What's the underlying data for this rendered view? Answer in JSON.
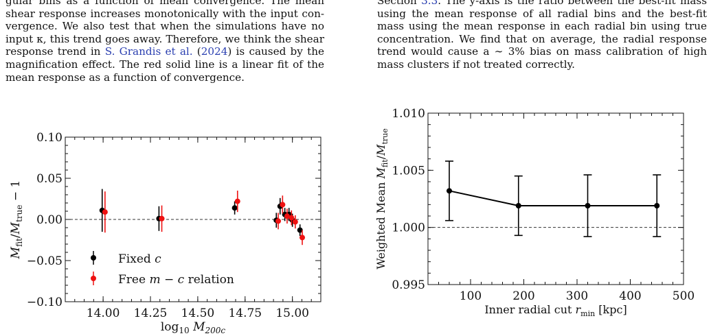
{
  "left_text": {
    "lines": [
      "gular bins as a function of mean convergence.  The mean",
      "shear response increases monotonically with the input con-",
      "vergence. We also test that when the simulations have no",
      "input κ, this trend goes away. Therefore, we think the shear",
      "response trend in ",
      "magnification effect. The red solid line is a linear fit of the",
      "mean response as a function of convergence."
    ],
    "cite_name": "S. Grandis et al.",
    "cite_year": "2024",
    "line5_tail": ") is caused by the",
    "line0_head": "gular bins as a function of mean convergence.  The mean"
  },
  "right_text": {
    "lines": [
      "Section 3.3.  The y-axis is the ratio between the best-fit mass",
      "using the mean response of all radial bins and the best-fit",
      "mass using the mean response in each radial bin using true",
      "concentration. We find that on average, the radial response",
      "trend would cause a ∼ 3% bias on mass calibration of high",
      "mass clusters if not treated correctly."
    ],
    "section_ref": "3.3"
  },
  "chart_data": [
    {
      "type": "scatter",
      "xlabel": "log10 M200c",
      "ylabel": "Mfit/Mtrue − 1",
      "xlim": [
        13.8,
        15.15
      ],
      "ylim": [
        -0.1,
        0.1
      ],
      "xticks": [
        14.0,
        14.25,
        14.5,
        14.75,
        15.0
      ],
      "xtick_labels": [
        "14.00",
        "14.25",
        "14.50",
        "14.75",
        "15.00"
      ],
      "yticks": [
        -0.1,
        -0.05,
        0.0,
        0.05,
        0.1
      ],
      "ytick_labels": [
        "−0.10",
        "−0.05",
        "0.00",
        "0.05",
        "0.10"
      ],
      "reference_line": 0.0,
      "legend_placement": "lower-left",
      "series": [
        {
          "name": "Fixed c",
          "color": "#000000",
          "points": [
            {
              "x": 13.995,
              "y": 0.011,
              "err": 0.026
            },
            {
              "x": 14.295,
              "y": 0.001,
              "err": 0.015
            },
            {
              "x": 14.695,
              "y": 0.014,
              "err": 0.008
            },
            {
              "x": 14.915,
              "y": -0.001,
              "err": 0.009
            },
            {
              "x": 14.935,
              "y": 0.016,
              "err": 0.01
            },
            {
              "x": 14.96,
              "y": 0.006,
              "err": 0.008
            },
            {
              "x": 14.982,
              "y": 0.006,
              "err": 0.008
            },
            {
              "x": 15.0,
              "y": -0.001,
              "err": 0.008
            },
            {
              "x": 15.04,
              "y": -0.013,
              "err": 0.007
            }
          ]
        },
        {
          "name": "Free m − c relation",
          "color": "#ee1111",
          "points": [
            {
              "x": 14.01,
              "y": 0.009,
              "err": 0.025
            },
            {
              "x": 14.31,
              "y": 0.001,
              "err": 0.016
            },
            {
              "x": 14.71,
              "y": 0.022,
              "err": 0.013
            },
            {
              "x": 14.925,
              "y": -0.002,
              "err": 0.01
            },
            {
              "x": 14.948,
              "y": 0.018,
              "err": 0.011
            },
            {
              "x": 14.972,
              "y": 0.004,
              "err": 0.009
            },
            {
              "x": 14.995,
              "y": 0.002,
              "err": 0.009
            },
            {
              "x": 15.015,
              "y": -0.003,
              "err": 0.008
            },
            {
              "x": 15.052,
              "y": -0.022,
              "err": 0.009
            }
          ]
        }
      ]
    },
    {
      "type": "line",
      "xlabel": "Inner radial cut rmin [kpc]",
      "ylabel": "Weighted Mean Mfit/Mtrue",
      "xlim": [
        20,
        500
      ],
      "ylim": [
        0.995,
        1.01
      ],
      "xticks": [
        100,
        200,
        300,
        400,
        500
      ],
      "xtick_labels": [
        "100",
        "200",
        "300",
        "400",
        "500"
      ],
      "yticks": [
        0.995,
        1.0,
        1.005,
        1.01
      ],
      "ytick_labels": [
        "0.995",
        "1.000",
        "1.005",
        "1.010"
      ],
      "reference_line": 1.0,
      "series": [
        {
          "color": "#000000",
          "points": [
            {
              "x": 60,
              "y": 1.0032,
              "err": 0.0026
            },
            {
              "x": 190,
              "y": 1.0019,
              "err": 0.0026
            },
            {
              "x": 320,
              "y": 1.0019,
              "err": 0.0027
            },
            {
              "x": 450,
              "y": 1.0019,
              "err": 0.0027
            }
          ]
        }
      ]
    }
  ]
}
